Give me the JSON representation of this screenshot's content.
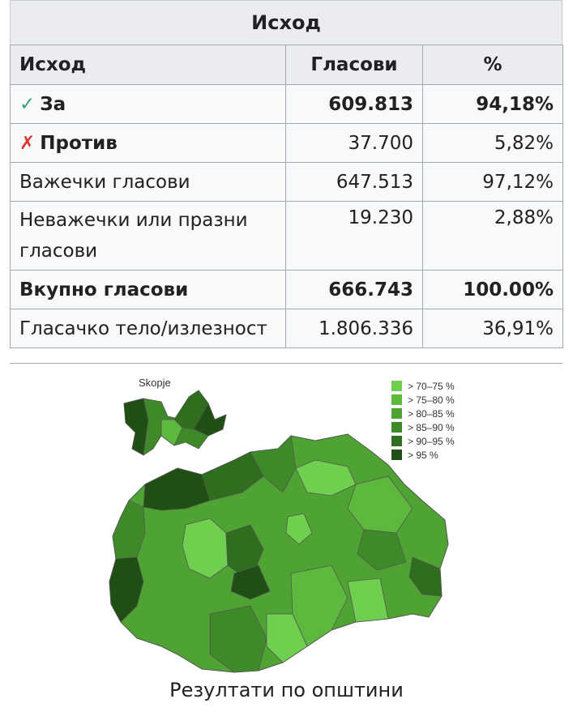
{
  "title": "Исход",
  "table": {
    "headers": [
      "Исход",
      "Гласови",
      "%"
    ],
    "rows": [
      {
        "label": "За",
        "votes": "609.813",
        "pct": "94,18%"
      },
      {
        "label": "Против",
        "votes": "37.700",
        "pct": "5,82%"
      },
      {
        "label": "Важечки гласови",
        "votes": "647.513",
        "pct": "97,12%"
      },
      {
        "label": "Неважечки или празни гласови",
        "votes": "19.230",
        "pct": "2,88%"
      },
      {
        "label": "Вкупно гласови",
        "votes": "666.743",
        "pct": "100.00%"
      },
      {
        "label": "Гласачко тело/излезност",
        "votes": "1.806.336",
        "pct": "36,91%"
      }
    ],
    "check_icon": "✓",
    "cross_icon": "✗"
  },
  "map": {
    "inset_label": "Skopje",
    "legend": [
      {
        "label": "> 70–75 %",
        "color": "#6fcf4e"
      },
      {
        "label": "> 75–80 %",
        "color": "#5cb93d"
      },
      {
        "label": "> 80–85 %",
        "color": "#4ea332"
      },
      {
        "label": "> 85–90 %",
        "color": "#3e8a28"
      },
      {
        "label": "> 90–95 %",
        "color": "#2f6e1e"
      },
      {
        "label": "> 95 %",
        "color": "#1f4f13"
      }
    ],
    "caption": "Резултати по општини"
  }
}
